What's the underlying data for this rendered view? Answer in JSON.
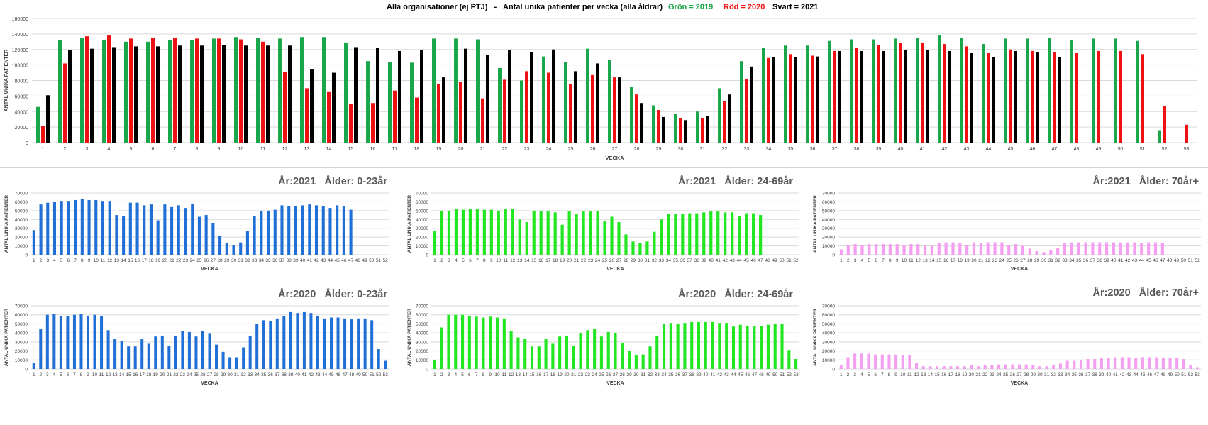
{
  "colors": {
    "green": "#1aa64a",
    "red": "#ee1111",
    "black": "#000000",
    "blue": "#1f6fd6",
    "lime": "#22e622",
    "pink": "#f39ef0",
    "grid": "#d9d9d9",
    "sub_title": "#595959"
  },
  "chart_data": [
    {
      "type": "bar",
      "title": "Alla organisationer (ej PTJ)   -   Antal unika patienter per vecka (alla åldrar)",
      "legend": [
        {
          "label": "Grön = 2019",
          "color": "#1aa64a"
        },
        {
          "label": "Röd = 2020",
          "color": "#ee1111"
        },
        {
          "label": "Svart = 2021",
          "color": "#000000"
        }
      ],
      "xlabel": "VECKA",
      "ylabel": "ANTAL UNIKA PATIENTER",
      "ylim": [
        0,
        160000
      ],
      "yticks": [
        "0",
        "20000",
        "40000",
        "60000",
        "80000",
        "100000",
        "120000",
        "140000",
        "160000"
      ],
      "grid": true,
      "categories": [
        "1",
        "2",
        "3",
        "4",
        "5",
        "6",
        "7",
        "8",
        "9",
        "10",
        "11",
        "12",
        "13",
        "14",
        "15",
        "16",
        "17",
        "18",
        "19",
        "20",
        "21",
        "22",
        "23",
        "24",
        "25",
        "26",
        "27",
        "28",
        "29",
        "30",
        "31",
        "32",
        "33",
        "34",
        "35",
        "36",
        "37",
        "38",
        "39",
        "40",
        "41",
        "42",
        "43",
        "44",
        "45",
        "46",
        "47",
        "48",
        "49",
        "50",
        "51",
        "52",
        "53"
      ],
      "series": [
        {
          "values": [
            46000,
            132000,
            135000,
            132000,
            130000,
            130000,
            132000,
            132000,
            134000,
            136000,
            135000,
            134000,
            136000,
            136000,
            129000,
            105000,
            104000,
            103000,
            134000,
            134000,
            133000,
            96000,
            80000,
            111000,
            104000,
            121000,
            107000,
            72000,
            48000,
            37000,
            40000,
            70000,
            105000,
            122000,
            125000,
            125000,
            131000,
            133000,
            133000,
            134000,
            135000,
            138000,
            135000,
            127000,
            134000,
            134000,
            135000,
            132000,
            134000,
            134000,
            131000,
            16000,
            null
          ],
          "color": "#1aa64a"
        },
        {
          "values": [
            21000,
            102000,
            137000,
            138000,
            134000,
            135000,
            135000,
            134000,
            134000,
            133000,
            130000,
            91000,
            70000,
            66000,
            50000,
            51000,
            67000,
            58000,
            75000,
            78000,
            57000,
            81000,
            92000,
            90000,
            75000,
            87000,
            84000,
            62000,
            42000,
            32000,
            32000,
            53000,
            82000,
            109000,
            114000,
            112000,
            118000,
            122000,
            126000,
            128000,
            129000,
            127000,
            124000,
            116000,
            120000,
            118000,
            117000,
            116000,
            118000,
            118000,
            114000,
            47000,
            23000
          ],
          "color": "#ee1111"
        },
        {
          "values": [
            61000,
            119000,
            121000,
            123000,
            124000,
            124000,
            125000,
            125000,
            126000,
            125000,
            125000,
            125000,
            95000,
            90000,
            123000,
            122000,
            118000,
            119000,
            84000,
            121000,
            113000,
            119000,
            117000,
            120000,
            92000,
            102000,
            84000,
            51000,
            33000,
            29000,
            34000,
            62000,
            98000,
            110000,
            110000,
            111000,
            118000,
            118000,
            118000,
            119000,
            119000,
            118000,
            116000,
            110000,
            118000,
            117000,
            110000,
            null,
            null,
            null,
            null,
            null,
            null
          ],
          "color": "#000000"
        }
      ]
    },
    {
      "type": "bar",
      "title": "År:2021   Ålder: 0-23år",
      "xlabel": "VECKA",
      "ylabel": "ANTAL UNIKA PATIENTER",
      "ylim": [
        0,
        70000
      ],
      "yticks": [
        "0",
        "10000",
        "20000",
        "30000",
        "40000",
        "50000",
        "60000",
        "70000"
      ],
      "categories": [
        "1",
        "2",
        "3",
        "4",
        "5",
        "6",
        "7",
        "8",
        "9",
        "10",
        "11",
        "12",
        "13",
        "14",
        "15",
        "16",
        "17",
        "18",
        "19",
        "20",
        "21",
        "22",
        "23",
        "24",
        "25",
        "26",
        "27",
        "28",
        "29",
        "30",
        "31",
        "32",
        "33",
        "34",
        "35",
        "36",
        "37",
        "38",
        "39",
        "40",
        "41",
        "42",
        "43",
        "44",
        "45",
        "46",
        "47",
        "48",
        "49",
        "50",
        "51",
        "52"
      ],
      "values": [
        28000,
        57000,
        59000,
        60000,
        61000,
        61000,
        62000,
        63000,
        62000,
        62000,
        61000,
        61000,
        45000,
        44000,
        59000,
        59000,
        56000,
        57000,
        39000,
        57000,
        54000,
        56000,
        53000,
        58000,
        43000,
        45000,
        36000,
        21000,
        13000,
        11000,
        14000,
        27000,
        44000,
        50000,
        50000,
        51000,
        56000,
        55000,
        55000,
        56000,
        57000,
        56000,
        55000,
        53000,
        56000,
        55000,
        51000,
        null,
        null,
        null,
        null,
        null
      ],
      "color": "#1f6fd6"
    },
    {
      "type": "bar",
      "title": "År:2021   Ålder: 24-69år",
      "xlabel": "VECKA",
      "ylabel": "ANTAL UNIKA PATIENTER",
      "ylim": [
        0,
        70000
      ],
      "yticks": [
        "0",
        "10000",
        "20000",
        "30000",
        "40000",
        "50000",
        "60000",
        "70000"
      ],
      "categories": [
        "1",
        "2",
        "3",
        "4",
        "5",
        "6",
        "7",
        "8",
        "9",
        "10",
        "11",
        "12",
        "13",
        "14",
        "15",
        "16",
        "17",
        "18",
        "19",
        "20",
        "21",
        "22",
        "23",
        "24",
        "25",
        "26",
        "27",
        "28",
        "29",
        "30",
        "31",
        "32",
        "33",
        "34",
        "35",
        "36",
        "37",
        "38",
        "39",
        "40",
        "41",
        "42",
        "43",
        "44",
        "45",
        "46",
        "47",
        "48",
        "49",
        "50",
        "51",
        "52"
      ],
      "values": [
        27000,
        50000,
        50000,
        52000,
        51000,
        52000,
        52000,
        51000,
        51000,
        50000,
        52000,
        52000,
        40000,
        37000,
        50000,
        49000,
        49000,
        48000,
        34000,
        49000,
        46000,
        49000,
        49000,
        49000,
        38000,
        43000,
        37000,
        23000,
        15000,
        13000,
        15000,
        26000,
        40000,
        46000,
        46000,
        46000,
        47000,
        47000,
        48000,
        49000,
        49000,
        48000,
        48000,
        44000,
        47000,
        47000,
        45000,
        null,
        null,
        null,
        null,
        null
      ],
      "color": "#22e622"
    },
    {
      "type": "bar",
      "title": "År:2021   Ålder: 70år+",
      "xlabel": "VECKA",
      "ylabel": "ANTAL UNIKA PATIENTER",
      "ylim": [
        0,
        70000
      ],
      "yticks": [
        "0",
        "10000",
        "20000",
        "30000",
        "40000",
        "50000",
        "60000",
        "70000"
      ],
      "categories": [
        "1",
        "2",
        "3",
        "4",
        "5",
        "6",
        "7",
        "8",
        "9",
        "10",
        "11",
        "12",
        "13",
        "14",
        "15",
        "16",
        "17",
        "18",
        "19",
        "20",
        "21",
        "22",
        "23",
        "24",
        "25",
        "26",
        "27",
        "28",
        "29",
        "30",
        "31",
        "32",
        "33",
        "34",
        "35",
        "36",
        "37",
        "38",
        "39",
        "40",
        "41",
        "42",
        "43",
        "44",
        "45",
        "46",
        "47",
        "48",
        "49",
        "50",
        "51",
        "52"
      ],
      "values": [
        6000,
        11000,
        12000,
        11000,
        12000,
        12000,
        12000,
        12000,
        12000,
        11000,
        12000,
        12000,
        10000,
        10000,
        13000,
        14000,
        14000,
        13000,
        11000,
        14000,
        13000,
        14000,
        14000,
        14000,
        11000,
        12000,
        10000,
        7000,
        4000,
        3000,
        5000,
        8000,
        13000,
        14000,
        14000,
        14000,
        14000,
        14000,
        14000,
        14000,
        14000,
        14000,
        14000,
        13000,
        14000,
        14000,
        13000,
        null,
        null,
        null,
        null,
        null
      ],
      "color": "#f39ef0"
    },
    {
      "type": "bar",
      "title": "År:2020   Ålder: 0-23år",
      "xlabel": "VECKA",
      "ylabel": "ANTAL UNIKA PATIENTER",
      "ylim": [
        0,
        70000
      ],
      "yticks": [
        "0",
        "10000",
        "20000",
        "30000",
        "40000",
        "50000",
        "60000",
        "70000"
      ],
      "categories": [
        "1",
        "2",
        "3",
        "4",
        "5",
        "6",
        "7",
        "8",
        "9",
        "10",
        "11",
        "12",
        "13",
        "14",
        "15",
        "16",
        "17",
        "18",
        "19",
        "20",
        "21",
        "22",
        "23",
        "24",
        "25",
        "26",
        "27",
        "28",
        "29",
        "30",
        "31",
        "32",
        "33",
        "34",
        "35",
        "36",
        "37",
        "38",
        "39",
        "40",
        "41",
        "42",
        "43",
        "44",
        "45",
        "46",
        "47",
        "48",
        "49",
        "50",
        "51",
        "52",
        "53"
      ],
      "values": [
        7000,
        44000,
        60000,
        61000,
        59000,
        59000,
        60000,
        61000,
        59000,
        60000,
        59000,
        43000,
        33000,
        31000,
        25000,
        25000,
        33000,
        28000,
        36000,
        37000,
        26000,
        37000,
        42000,
        41000,
        36000,
        42000,
        39000,
        27000,
        19000,
        13000,
        13000,
        24000,
        37000,
        50000,
        54000,
        53000,
        56000,
        59000,
        63000,
        62000,
        63000,
        62000,
        59000,
        56000,
        57000,
        57000,
        56000,
        55000,
        56000,
        56000,
        54000,
        22000,
        9000
      ],
      "color": "#1f6fd6"
    },
    {
      "type": "bar",
      "title": "År:2020   Ålder: 24-69år",
      "xlabel": "VECKA",
      "ylabel": "ANTAL UNIKA PATIENTER",
      "ylim": [
        0,
        70000
      ],
      "yticks": [
        "0",
        "10000",
        "20000",
        "30000",
        "40000",
        "50000",
        "60000",
        "70000"
      ],
      "categories": [
        "1",
        "2",
        "3",
        "4",
        "5",
        "6",
        "7",
        "8",
        "9",
        "10",
        "11",
        "12",
        "13",
        "14",
        "15",
        "16",
        "17",
        "18",
        "19",
        "20",
        "21",
        "22",
        "23",
        "24",
        "25",
        "26",
        "27",
        "28",
        "29",
        "30",
        "31",
        "32",
        "33",
        "34",
        "35",
        "36",
        "37",
        "38",
        "39",
        "40",
        "41",
        "42",
        "43",
        "44",
        "45",
        "46",
        "47",
        "48",
        "49",
        "50",
        "51",
        "52",
        "53"
      ],
      "values": [
        10000,
        46000,
        60000,
        60000,
        60000,
        59000,
        58000,
        57000,
        58000,
        57000,
        56000,
        42000,
        35000,
        33000,
        25000,
        25000,
        33000,
        28000,
        36000,
        37000,
        26000,
        40000,
        43000,
        44000,
        36000,
        41000,
        40000,
        29000,
        20000,
        15000,
        16000,
        25000,
        37000,
        50000,
        51000,
        50000,
        51000,
        52000,
        52000,
        52000,
        52000,
        51000,
        51000,
        47000,
        49000,
        48000,
        48000,
        48000,
        49000,
        50000,
        50000,
        21000,
        11000
      ],
      "color": "#22e622"
    },
    {
      "type": "bar",
      "title": "År:2020   Ålder: 70år+",
      "xlabel": "VECKA",
      "ylabel": "ANTAL UNIKA PATIENTER",
      "ylim": [
        0,
        70000
      ],
      "yticks": [
        "0",
        "10000",
        "20000",
        "30000",
        "40000",
        "50000",
        "60000",
        "70000"
      ],
      "categories": [
        "1",
        "2",
        "3",
        "4",
        "5",
        "6",
        "7",
        "8",
        "9",
        "10",
        "11",
        "12",
        "13",
        "14",
        "15",
        "16",
        "17",
        "18",
        "19",
        "20",
        "21",
        "22",
        "23",
        "24",
        "25",
        "26",
        "27",
        "28",
        "29",
        "30",
        "31",
        "32",
        "33",
        "34",
        "35",
        "36",
        "37",
        "38",
        "39",
        "40",
        "41",
        "42",
        "43",
        "44",
        "45",
        "46",
        "47",
        "48",
        "49",
        "50",
        "51",
        "52",
        "53"
      ],
      "values": [
        4000,
        13000,
        17000,
        17000,
        17000,
        16000,
        16000,
        16000,
        16000,
        15000,
        15000,
        7000,
        3000,
        3000,
        3000,
        3000,
        3000,
        3000,
        3000,
        4000,
        3000,
        4000,
        4000,
        5000,
        5000,
        5000,
        5000,
        5000,
        4000,
        3000,
        3000,
        4000,
        6000,
        9000,
        9000,
        10000,
        11000,
        11000,
        12000,
        12000,
        13000,
        13000,
        13000,
        12000,
        13000,
        13000,
        13000,
        12000,
        12000,
        12000,
        11000,
        4000,
        2000
      ],
      "color": "#f39ef0"
    }
  ]
}
